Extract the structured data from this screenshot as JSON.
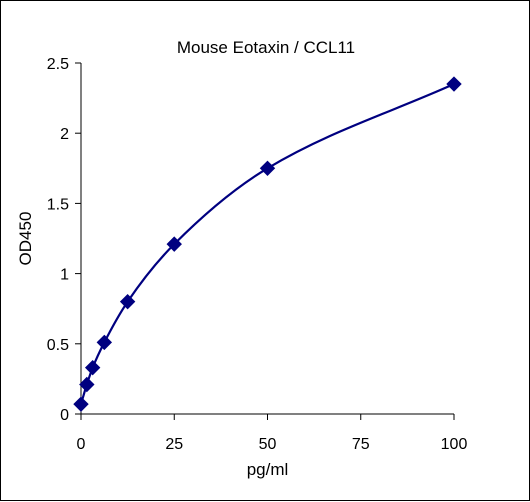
{
  "chart_data": {
    "type": "scatter",
    "title": "Mouse Eotaxin / CCL11",
    "xlabel": "pg/ml",
    "ylabel": "OD450",
    "xlim": [
      0,
      100
    ],
    "ylim": [
      0,
      2.5
    ],
    "xticks": [
      0,
      25,
      50,
      75,
      100
    ],
    "xtick_labels": [
      "0",
      "25",
      "50",
      "75",
      "100"
    ],
    "yticks": [
      0,
      0.5,
      1,
      1.5,
      2,
      2.5
    ],
    "ytick_labels": [
      "0",
      "0.5",
      "1",
      "1.5",
      "2",
      "2.5"
    ],
    "grid": false,
    "legend": "none",
    "marker": "diamond",
    "line": "smooth",
    "color": "#000080",
    "series": [
      {
        "x": [
          0,
          1.56,
          3.13,
          6.25,
          12.5,
          25,
          50,
          100
        ],
        "y": [
          0.07,
          0.21,
          0.33,
          0.51,
          0.8,
          1.21,
          1.75,
          2.35
        ]
      }
    ]
  }
}
